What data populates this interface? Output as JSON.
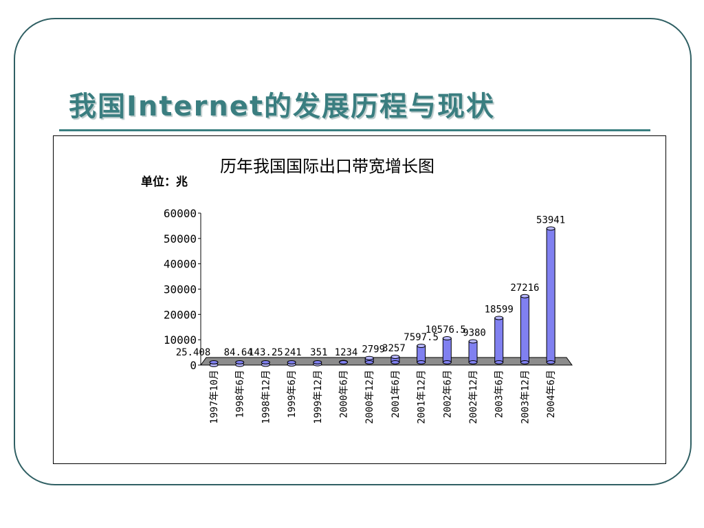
{
  "slide": {
    "title": "我国Internet的发展历程与现状"
  },
  "colors": {
    "frame": "#2f5f63",
    "title": "#3a7e80",
    "bar": "#8080f0",
    "bar_top": "#b8b8ff",
    "floor": "#8c8c8c"
  },
  "chart_data": {
    "type": "bar",
    "title": "历年我国国际出口带宽增长图",
    "unit_label": "单位：兆",
    "ylim": [
      0,
      60000
    ],
    "yticks": [
      "60000",
      "50000",
      "40000",
      "30000",
      "20000",
      "10000",
      "0"
    ],
    "categories": [
      "1997年10月",
      "1998年6月",
      "1998年12月",
      "1999年6月",
      "1999年12月",
      "2000年6月",
      "2000年12月",
      "2001年6月",
      "2001年12月",
      "2002年6月",
      "2002年12月",
      "2003年6月",
      "2003年12月",
      "2004年6月"
    ],
    "values": [
      25.408,
      84.64,
      143.25,
      241,
      351,
      1234,
      2799,
      3257,
      7597.5,
      10576.5,
      9380,
      18599,
      27216,
      53941
    ],
    "value_labels": [
      "25.408",
      "84.64",
      "143.25",
      "241",
      "351",
      "1234",
      "2799",
      "3257",
      "7597.5",
      "10576.5",
      "9380",
      "18599",
      "27216",
      "53941"
    ],
    "grid": false,
    "legend": "none"
  }
}
